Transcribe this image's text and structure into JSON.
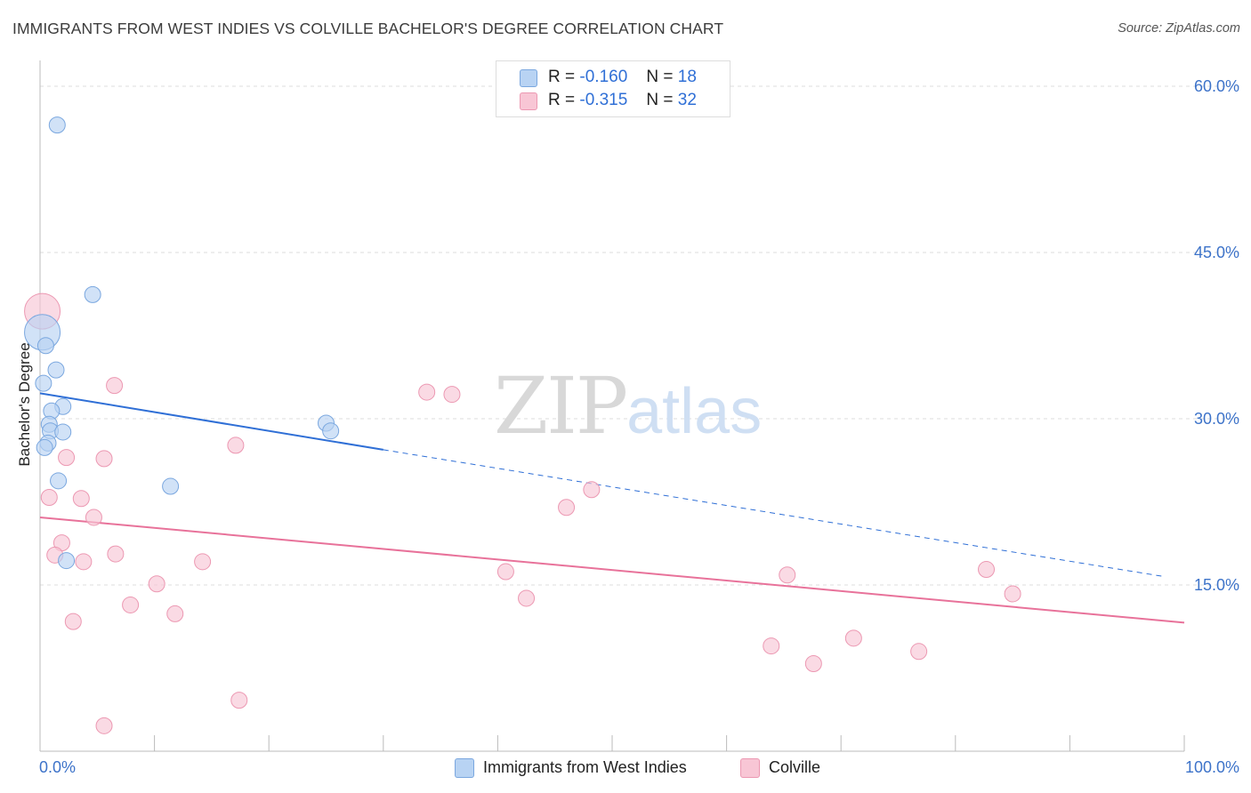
{
  "header": {
    "title": "IMMIGRANTS FROM WEST INDIES VS COLVILLE BACHELOR'S DEGREE CORRELATION CHART",
    "source": "Source: ZipAtlas.com"
  },
  "legend_top": {
    "rows": [
      {
        "r_label": "R =",
        "r_value": "-0.160",
        "n_label": "N =",
        "n_value": "18"
      },
      {
        "r_label": "R =",
        "r_value": "-0.315",
        "n_label": "N =",
        "n_value": "32"
      }
    ]
  },
  "watermark": {
    "zip": "ZIP",
    "atlas": "atlas"
  },
  "colors": {
    "blue_fill": "#b8d3f3",
    "blue_stroke": "#7aa7df",
    "blue_line": "#2f6fd6",
    "pink_fill": "#f8c6d5",
    "pink_stroke": "#ec98b2",
    "pink_line": "#e8729a",
    "axis_label": "#3d73c9",
    "grid": "#dedede"
  },
  "chart_data": {
    "type": "scatter",
    "title": "IMMIGRANTS FROM WEST INDIES VS COLVILLE BACHELOR'S DEGREE CORRELATION CHART",
    "xlabel": "",
    "ylabel": "Bachelor's Degree",
    "xlim": [
      0,
      100
    ],
    "ylim": [
      0,
      60
    ],
    "x_tick_labels": [
      "0.0%",
      "100.0%"
    ],
    "y_ticks": [
      15,
      30,
      45,
      60
    ],
    "y_tick_labels": [
      "15.0%",
      "30.0%",
      "45.0%",
      "60.0%"
    ],
    "grid": true,
    "legend_placement": "bottom",
    "series": [
      {
        "name": "Immigrants from West Indies",
        "color": "#b8d3f3",
        "points": [
          {
            "x": 1.5,
            "y": 56.5
          },
          {
            "x": 4.6,
            "y": 41.2
          },
          {
            "x": 0.2,
            "y": 37.8
          },
          {
            "x": 0.5,
            "y": 36.6
          },
          {
            "x": 1.4,
            "y": 34.4
          },
          {
            "x": 0.3,
            "y": 33.2
          },
          {
            "x": 2.0,
            "y": 31.1
          },
          {
            "x": 1.0,
            "y": 30.7
          },
          {
            "x": 0.8,
            "y": 29.5
          },
          {
            "x": 0.9,
            "y": 28.9
          },
          {
            "x": 2.0,
            "y": 28.8
          },
          {
            "x": 0.7,
            "y": 27.8
          },
          {
            "x": 0.4,
            "y": 27.4
          },
          {
            "x": 1.6,
            "y": 24.4
          },
          {
            "x": 11.4,
            "y": 23.9
          },
          {
            "x": 2.3,
            "y": 17.2
          },
          {
            "x": 25.0,
            "y": 29.6
          },
          {
            "x": 25.4,
            "y": 28.9
          }
        ],
        "trend": {
          "x": [
            0,
            30
          ],
          "y": [
            32.3,
            27.2
          ],
          "dashed_to": {
            "x": 98,
            "y": 15.8
          }
        }
      },
      {
        "name": "Colville",
        "color": "#f8c6d5",
        "points": [
          {
            "x": 0.2,
            "y": 39.7
          },
          {
            "x": 6.5,
            "y": 33.0
          },
          {
            "x": 2.3,
            "y": 26.5
          },
          {
            "x": 5.6,
            "y": 26.4
          },
          {
            "x": 17.1,
            "y": 27.6
          },
          {
            "x": 33.8,
            "y": 32.4
          },
          {
            "x": 36.0,
            "y": 32.2
          },
          {
            "x": 0.8,
            "y": 22.9
          },
          {
            "x": 3.6,
            "y": 22.8
          },
          {
            "x": 4.7,
            "y": 21.1
          },
          {
            "x": 1.9,
            "y": 18.8
          },
          {
            "x": 1.3,
            "y": 17.7
          },
          {
            "x": 3.8,
            "y": 17.1
          },
          {
            "x": 6.6,
            "y": 17.8
          },
          {
            "x": 14.2,
            "y": 17.1
          },
          {
            "x": 10.2,
            "y": 15.1
          },
          {
            "x": 7.9,
            "y": 13.2
          },
          {
            "x": 11.8,
            "y": 12.4
          },
          {
            "x": 2.9,
            "y": 11.7
          },
          {
            "x": 17.4,
            "y": 4.6
          },
          {
            "x": 5.6,
            "y": 2.3
          },
          {
            "x": 40.7,
            "y": 16.2
          },
          {
            "x": 42.5,
            "y": 13.8
          },
          {
            "x": 46.0,
            "y": 22.0
          },
          {
            "x": 48.2,
            "y": 23.6
          },
          {
            "x": 65.3,
            "y": 15.9
          },
          {
            "x": 63.9,
            "y": 9.5
          },
          {
            "x": 67.6,
            "y": 7.9
          },
          {
            "x": 71.1,
            "y": 10.2
          },
          {
            "x": 76.8,
            "y": 9.0
          },
          {
            "x": 82.7,
            "y": 16.4
          },
          {
            "x": 85.0,
            "y": 14.2
          }
        ],
        "trend": {
          "x": [
            0,
            100
          ],
          "y": [
            21.1,
            11.6
          ]
        }
      }
    ]
  }
}
